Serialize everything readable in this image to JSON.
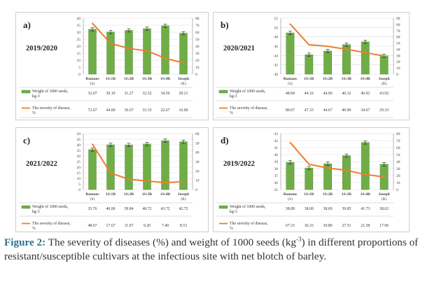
{
  "colors": {
    "bar": "#70ad47",
    "bar_stroke": "#4e8a30",
    "line": "#ed7d31",
    "grid": "#d9d9d9",
    "axis_text": "#404040",
    "caption_label": "#2f6f8f"
  },
  "legend": {
    "bar_label_1": "Weight of 1000 seeds,",
    "bar_label_2": "kg-3",
    "line_label_1": "The severity of disease,",
    "line_label_2": "%"
  },
  "caption": {
    "label": "Figure 2:",
    "text_1": " The severity of diseases (%) and weight of 1000 seeds (kg",
    "sup": "-3",
    "text_2": ") in different proportions of resistant/susceptible cultivars at the infectious site with net blotch of barley."
  },
  "chart_data": [
    {
      "panel": "a)",
      "year": "2019/2020",
      "type": "bar",
      "categories": [
        "Romans (S)",
        "1S:1R",
        "1S:2R",
        "1S:3R",
        "1S:4R",
        "Joseph (R)"
      ],
      "series": [
        {
          "name": "Weight of 1000 seeds, kg-3",
          "type": "bar",
          "axis": "left",
          "values": [
            32.07,
            30.1,
            31.27,
            32.52,
            34.56,
            29.21
          ],
          "display": [
            "32.07",
            "30.10",
            "31.27",
            "32.52",
            "34.56",
            "29.21"
          ]
        },
        {
          "name": "The severity of disease, %",
          "type": "line",
          "axis": "right",
          "values": [
            72.67,
            44.0,
            36.67,
            33.33,
            22.67,
            16.0
          ],
          "display": [
            "72.67",
            "44.00",
            "36.67",
            "33.33",
            "22.67",
            "16.00"
          ]
        }
      ],
      "ylim_left": [
        0,
        40
      ],
      "yticks_left": [
        0,
        5,
        10,
        15,
        20,
        25,
        30,
        35,
        40
      ],
      "ylim_right": [
        0,
        80
      ],
      "yticks_right": [
        0,
        10,
        20,
        30,
        40,
        50,
        60,
        70,
        80
      ]
    },
    {
      "panel": "b)",
      "year": "2020/2021",
      "type": "bar",
      "categories": [
        "Romans (S)",
        "1S:1R",
        "1S:2R",
        "1S:3R",
        "1S:4R",
        "Joseph (R)"
      ],
      "series": [
        {
          "name": "Weight of 1000 seeds, kg-3",
          "type": "bar",
          "axis": "left",
          "values": [
            48.84,
            44.16,
            44.96,
            46.32,
            46.92,
            43.92
          ],
          "display": [
            "48.84",
            "44.16",
            "44.96",
            "46.32",
            "46.92",
            "43.92"
          ]
        },
        {
          "name": "The severity of disease, %",
          "type": "line",
          "axis": "right",
          "values": [
            80.67,
            47.33,
            44.67,
            40.0,
            34.67,
            29.33
          ],
          "display": [
            "80.67",
            "47.33",
            "44.67",
            "40.00",
            "34.67",
            "29.33"
          ]
        }
      ],
      "ylim_left": [
        40,
        52
      ],
      "yticks_left": [
        40,
        42,
        44,
        46,
        48,
        50,
        52
      ],
      "ylim_right": [
        0,
        90
      ],
      "yticks_right": [
        0,
        10,
        20,
        30,
        40,
        50,
        60,
        70,
        80,
        90
      ]
    },
    {
      "panel": "c)",
      "year": "2021/2022",
      "type": "bar",
      "categories": [
        "Romans (S)",
        "1S:1R",
        "1S:2R",
        "1S:3R",
        "1S:4R",
        "Joseph (R)"
      ],
      "series": [
        {
          "name": "Weight of 1000 seeds, kg-3",
          "type": "bar",
          "axis": "left",
          "values": [
            35.76,
            40.0,
            39.84,
            40.72,
            43.72,
            42.72
          ],
          "display": [
            "35.76",
            "40.00",
            "39.84",
            "40.72",
            "43.72",
            "42.72"
          ]
        },
        {
          "name": "The severity of disease, %",
          "type": "line",
          "axis": "right",
          "values": [
            48.67,
            17.67,
            11.07,
            9.2,
            7.4,
            8.53
          ],
          "display": [
            "48.67",
            "17.67",
            "11.07",
            "9.20",
            "7.40",
            "8.53"
          ]
        }
      ],
      "ylim_left": [
        0,
        50
      ],
      "yticks_left": [
        0,
        5,
        10,
        15,
        20,
        25,
        30,
        35,
        40,
        45,
        50
      ],
      "ylim_right": [
        0,
        60
      ],
      "yticks_right": [
        0,
        10,
        20,
        30,
        40,
        50,
        60
      ]
    },
    {
      "panel": "d)",
      "year": "2019/2022",
      "type": "bar",
      "categories": [
        "Romans (S)",
        "1S:1R",
        "1S:2R",
        "1S:3R",
        "1S:4R",
        "Joseph (R)"
      ],
      "series": [
        {
          "name": "Weight of 1000 seeds, kg-3",
          "type": "bar",
          "axis": "left",
          "values": [
            38.89,
            38.09,
            38.69,
            39.85,
            41.73,
            38.62
          ],
          "display": [
            "38.89",
            "38.09",
            "38.69",
            "39.85",
            "41.73",
            "38.62"
          ]
        },
        {
          "name": "The severity of disease, %",
          "type": "line",
          "axis": "right",
          "values": [
            67.33,
            36.33,
            30.8,
            27.51,
            21.58,
            17.96
          ],
          "display": [
            "67.33",
            "36.33",
            "30.80",
            "27.51",
            "21.58",
            "17.96"
          ]
        }
      ],
      "ylim_left": [
        35,
        43
      ],
      "yticks_left": [
        35,
        36,
        37,
        38,
        39,
        40,
        41,
        42,
        43
      ],
      "ylim_right": [
        0,
        80
      ],
      "yticks_right": [
        0,
        10,
        20,
        30,
        40,
        50,
        60,
        70,
        80
      ]
    }
  ]
}
